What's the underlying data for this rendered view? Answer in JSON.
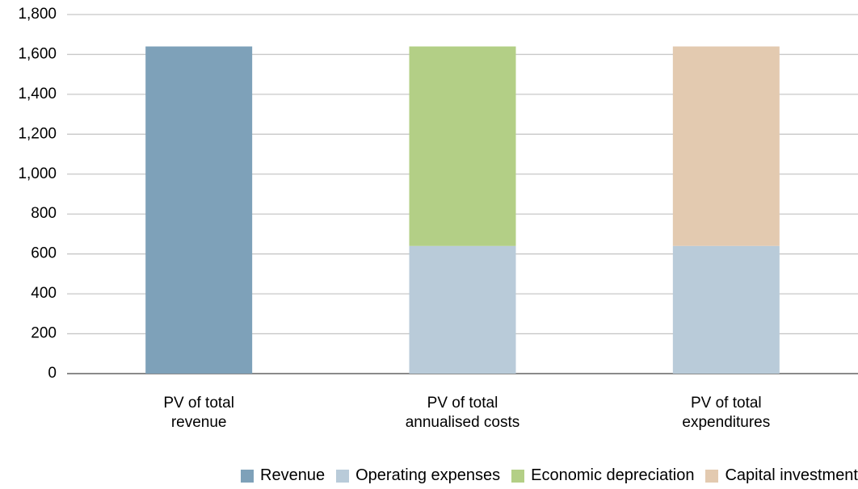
{
  "chart_data": {
    "type": "stacked_bar",
    "categories": [
      "PV of total\nrevenue",
      "PV of total\nannualised costs",
      "PV of total\nexpenditures"
    ],
    "series": [
      {
        "name": "Revenue",
        "color": "#7ea1b9",
        "values": [
          1640,
          null,
          null
        ]
      },
      {
        "name": "Operating expenses",
        "color": "#b9cbd9",
        "values": [
          null,
          640,
          640
        ]
      },
      {
        "name": "Economic depreciation",
        "color": "#b3cf86",
        "values": [
          null,
          1000,
          null
        ]
      },
      {
        "name": "Capital investment",
        "color": "#e3cab0",
        "values": [
          null,
          null,
          1000
        ]
      }
    ],
    "ylim": [
      0,
      1800
    ],
    "yticks": [
      0,
      200,
      400,
      600,
      800,
      {
        "value": 1000,
        "label": "1,000"
      },
      {
        "value": 1200,
        "label": "1,200"
      },
      {
        "value": 1400,
        "label": "1,400"
      },
      {
        "value": 1600,
        "label": "1,600"
      },
      {
        "value": 1800,
        "label": "1,800"
      }
    ],
    "grid": true,
    "legend": "bottom"
  }
}
